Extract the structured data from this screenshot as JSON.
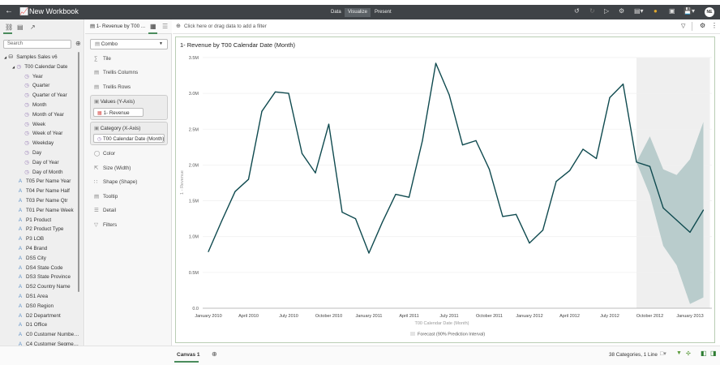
{
  "header": {
    "title": "New Workbook",
    "modes": [
      "Data",
      "Visualize",
      "Present"
    ],
    "active_mode": "Visualize",
    "avatar": "NE"
  },
  "left_panel": {
    "search_placeholder": "Search",
    "tree": [
      {
        "label": "Samples Sales v6",
        "type": "db",
        "level": 0
      },
      {
        "label": "T00 Calendar Date",
        "type": "clock",
        "level": 1
      },
      {
        "label": "Year",
        "type": "clock",
        "level": 2
      },
      {
        "label": "Quarter",
        "type": "clock",
        "level": 2
      },
      {
        "label": "Quarter of Year",
        "type": "clock",
        "level": 2
      },
      {
        "label": "Month",
        "type": "clock",
        "level": 2
      },
      {
        "label": "Month of Year",
        "type": "clock",
        "level": 2
      },
      {
        "label": "Week",
        "type": "clock",
        "level": 2
      },
      {
        "label": "Week of Year",
        "type": "clock",
        "level": 2
      },
      {
        "label": "Weekday",
        "type": "clock",
        "level": 2
      },
      {
        "label": "Day",
        "type": "clock",
        "level": 2
      },
      {
        "label": "Day of Year",
        "type": "clock",
        "level": 2
      },
      {
        "label": "Day of Month",
        "type": "clock",
        "level": 2
      },
      {
        "label": "T05 Per Name Year",
        "type": "attr",
        "level": 1
      },
      {
        "label": "T04 Per Name Half",
        "type": "attr",
        "level": 1
      },
      {
        "label": "T03 Per Name Qtr",
        "type": "attr",
        "level": 1
      },
      {
        "label": "T01 Per Name Week",
        "type": "attr",
        "level": 1
      },
      {
        "label": "P1 Product",
        "type": "attr",
        "level": 1
      },
      {
        "label": "P2 Product Type",
        "type": "attr",
        "level": 1
      },
      {
        "label": "P3 LOB",
        "type": "attr",
        "level": 1
      },
      {
        "label": "P4 Brand",
        "type": "attr",
        "level": 1
      },
      {
        "label": "DS5 City",
        "type": "attr",
        "level": 1
      },
      {
        "label": "DS4 State Code",
        "type": "attr",
        "level": 1
      },
      {
        "label": "DS3 State Province",
        "type": "attr",
        "level": 1
      },
      {
        "label": "DS2 Country Name",
        "type": "attr",
        "level": 1
      },
      {
        "label": "DS1 Area",
        "type": "attr",
        "level": 1
      },
      {
        "label": "DS0 Region",
        "type": "attr",
        "level": 1
      },
      {
        "label": "D2 Department",
        "type": "attr",
        "level": 1
      },
      {
        "label": "D1 Office",
        "type": "attr",
        "level": 1
      },
      {
        "label": "C0 Customer Numbe…",
        "type": "attr",
        "level": 1
      },
      {
        "label": "C4 Customer Segme…",
        "type": "attr",
        "level": 1
      },
      {
        "label": "C3 Customer Type",
        "type": "attr",
        "level": 1
      }
    ]
  },
  "grammar": {
    "viz_name": "1- Revenue by T00 ...",
    "chart_type": "Combo",
    "tile": "Tile",
    "trellis_columns": "Trellis Columns",
    "trellis_rows": "Trellis Rows",
    "values_label": "Values (Y-Axis)",
    "values_pill": "1- Revenue",
    "category_label": "Category (X-Axis)",
    "category_pill": "T00 Calendar Date (Month)",
    "color": "Color",
    "size": "Size (Width)",
    "shape": "Shape (Shape)",
    "tooltip": "Tooltip",
    "detail": "Detail",
    "filters": "Filters"
  },
  "filter_bar": {
    "placeholder": "Click here or drag data to add a filter"
  },
  "footer": {
    "canvas_tab": "Canvas 1",
    "status": "38 Categories, 1 Line"
  },
  "chart_data": {
    "type": "line",
    "title": "1- Revenue by T00 Calendar Date (Month)",
    "xlabel": "T00 Calendar Date (Month)",
    "ylabel": "1 - Revenue",
    "ylim": [
      0,
      3500000
    ],
    "yticks": [
      "0.0",
      "0.5M",
      "1.0M",
      "1.5M",
      "2.0M",
      "2.5M",
      "3.0M",
      "3.5M"
    ],
    "xtick_labels": [
      "January 2010",
      "April 2010",
      "July 2010",
      "October 2010",
      "January 2011",
      "April 2011",
      "July 2011",
      "October 2011",
      "January 2012",
      "April 2012",
      "July 2012",
      "October 2012",
      "January 2013"
    ],
    "grid": true,
    "line_color": "#0f4a4f",
    "band_color": "#b5c9c9",
    "values_millions": [
      0.79,
      1.22,
      1.63,
      1.8,
      2.75,
      3.02,
      3.0,
      2.16,
      1.89,
      2.57,
      1.34,
      1.25,
      0.77,
      1.2,
      1.59,
      1.55,
      2.34,
      3.42,
      2.98,
      2.28,
      2.34,
      1.94,
      1.28,
      1.31,
      0.91,
      1.09,
      1.77,
      1.92,
      2.22,
      2.09,
      2.94,
      3.13,
      2.04,
      1.98,
      1.4,
      1.23,
      1.06,
      1.37
    ],
    "forecast": {
      "legend": "Forecast (90% Prediction Interval)",
      "start_index": 32,
      "upper_millions": [
        2.04,
        2.4,
        1.94,
        1.86,
        2.08,
        2.6
      ],
      "lower_millions": [
        2.04,
        1.58,
        0.87,
        0.6,
        0.06,
        0.15
      ]
    }
  }
}
